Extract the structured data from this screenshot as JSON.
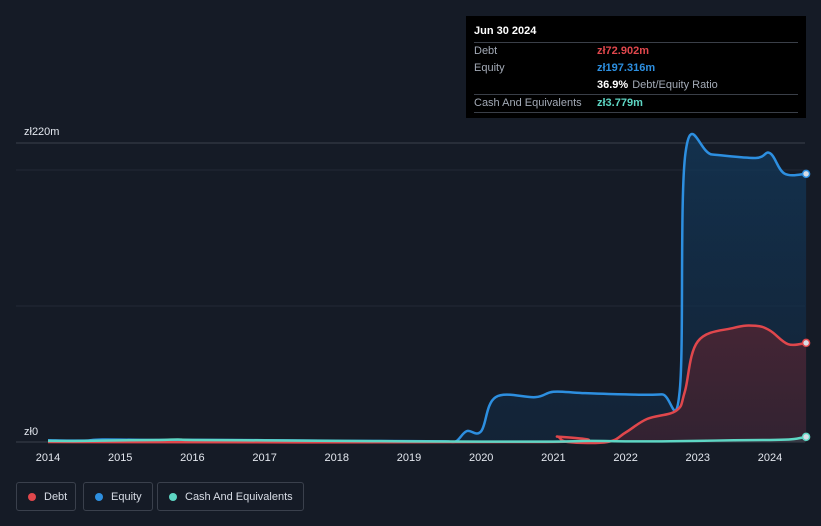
{
  "chart_data": {
    "type": "area",
    "y_top_label": "zł220m",
    "y_zero_label": "zł0",
    "ylim": [
      0,
      220
    ],
    "xlim": [
      2014,
      2024.5
    ],
    "x_ticks": [
      "2014",
      "2015",
      "2016",
      "2017",
      "2018",
      "2019",
      "2020",
      "2021",
      "2022",
      "2023",
      "2024"
    ],
    "series": [
      {
        "name": "Equity",
        "color": "#2d8fe0",
        "points": [
          [
            2014,
            1.3
          ],
          [
            2014.5,
            1
          ],
          [
            2014.75,
            1.8
          ],
          [
            2015.5,
            1.5
          ],
          [
            2016,
            1.6
          ],
          [
            2017,
            1.3
          ],
          [
            2018,
            0.9
          ],
          [
            2019,
            0.6
          ],
          [
            2019.5,
            0.5
          ],
          [
            2019.65,
            0.5
          ],
          [
            2019.8,
            8
          ],
          [
            2020,
            8
          ],
          [
            2020.2,
            33
          ],
          [
            2020.75,
            33
          ],
          [
            2021,
            37
          ],
          [
            2021.4,
            36
          ],
          [
            2022,
            35
          ],
          [
            2022.5,
            35
          ],
          [
            2022.75,
            38
          ],
          [
            2022.83,
            213
          ],
          [
            2023.2,
            211.5
          ],
          [
            2023.8,
            209
          ],
          [
            2024,
            212.5
          ],
          [
            2024.2,
            197.5
          ],
          [
            2024.5,
            197.316
          ]
        ]
      },
      {
        "name": "Debt",
        "color": "#e0474c",
        "points": [
          [
            2014,
            0
          ],
          [
            2020.9,
            0
          ],
          [
            2021.05,
            4
          ],
          [
            2021.2,
            0
          ],
          [
            2021.75,
            0
          ],
          [
            2022,
            7
          ],
          [
            2022.3,
            17
          ],
          [
            2022.7,
            23
          ],
          [
            2022.82,
            37
          ],
          [
            2023,
            74
          ],
          [
            2023.5,
            84
          ],
          [
            2023.8,
            85.5
          ],
          [
            2024,
            82
          ],
          [
            2024.25,
            72
          ],
          [
            2024.5,
            72.902
          ]
        ]
      },
      {
        "name": "Cash And Equivalents",
        "color": "#5ed6c4",
        "points": [
          [
            2014,
            0.8
          ],
          [
            2014.5,
            0.8
          ],
          [
            2015,
            1.2
          ],
          [
            2015.5,
            1.5
          ],
          [
            2015.8,
            1.8
          ],
          [
            2016,
            1.5
          ],
          [
            2017,
            1.2
          ],
          [
            2018,
            0.8
          ],
          [
            2019,
            0.5
          ],
          [
            2020,
            0.3
          ],
          [
            2021,
            0.3
          ],
          [
            2021.5,
            0.8
          ],
          [
            2022,
            0.5
          ],
          [
            2022.5,
            0.5
          ],
          [
            2023,
            0.8
          ],
          [
            2023.5,
            1.3
          ],
          [
            2024,
            1.5
          ],
          [
            2024.3,
            2
          ],
          [
            2024.5,
            3.779
          ]
        ]
      }
    ],
    "tooltip": {
      "date": "Jun 30 2024",
      "rows": [
        {
          "label": "Debt",
          "value": "zł72.902m",
          "color": "#e0474c"
        },
        {
          "label": "Equity",
          "value": "zł197.316m",
          "color": "#2d8fe0"
        },
        {
          "ratio_pct": "36.9%",
          "ratio_label": "Debt/Equity Ratio"
        },
        {
          "label": "Cash And Equivalents",
          "value": "zł3.779m",
          "color": "#5ed6c4"
        }
      ]
    },
    "legend": [
      {
        "name": "Debt",
        "color": "#e0474c"
      },
      {
        "name": "Equity",
        "color": "#2d8fe0"
      },
      {
        "name": "Cash And Equivalents",
        "color": "#5ed6c4"
      }
    ]
  }
}
